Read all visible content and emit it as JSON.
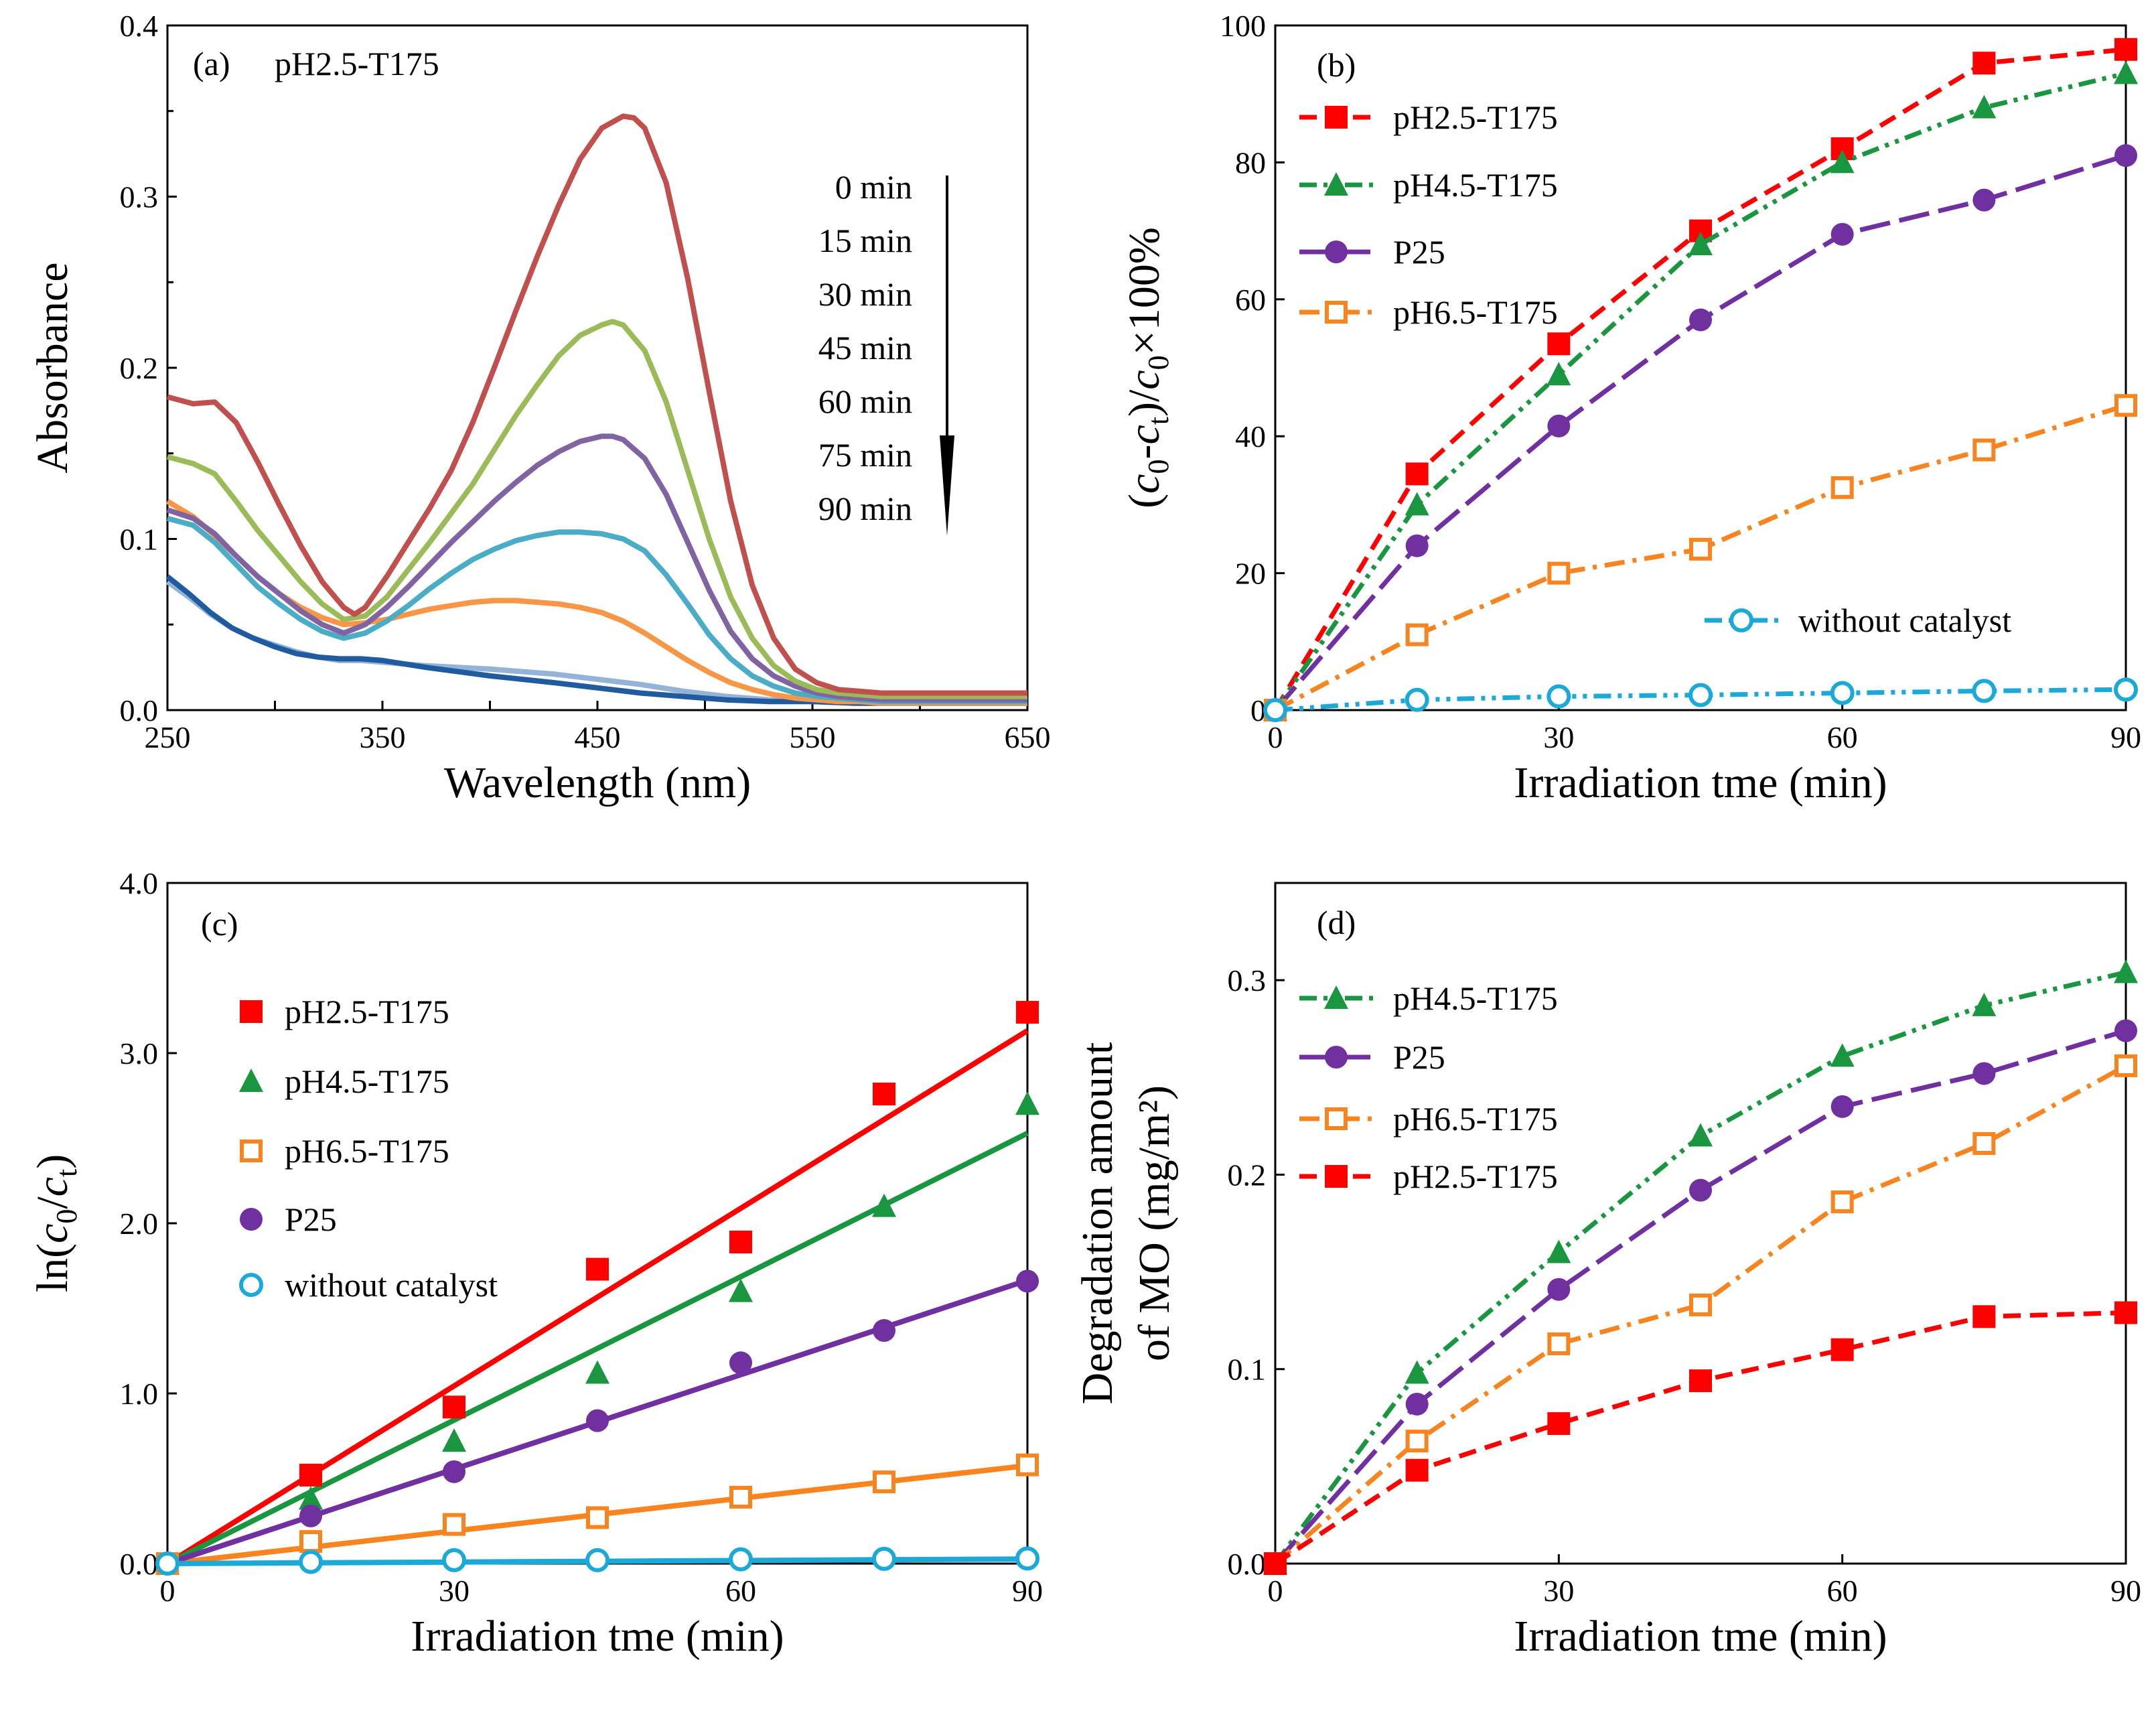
{
  "chart_data": [
    {
      "id": "a",
      "type": "line",
      "panel_label": "(a)",
      "title": "pH2.5-T175",
      "xlabel": "Wavelength (nm)",
      "ylabel": "Absorbance",
      "xlim": [
        250,
        650
      ],
      "ylim": [
        0,
        0.4
      ],
      "xticks": [
        250,
        350,
        450,
        550,
        650
      ],
      "xtick_labels": [
        "250",
        "350",
        "450",
        "550",
        "650"
      ],
      "yticks": [
        0,
        0.1,
        0.2,
        0.3,
        0.4
      ],
      "ytick_labels": [
        "0.0",
        "0.1",
        "0.2",
        "0.3",
        "0.4"
      ],
      "time_labels": [
        "0 min",
        "15 min",
        "30 min",
        "45 min",
        "60 min",
        "75 min",
        "90 min"
      ],
      "annotation": "arrow pointing down (decreasing absorbance with time)",
      "series": [
        {
          "name": "0 min",
          "color": "#C0504D",
          "x": [
            250,
            262,
            272,
            282,
            292,
            302,
            312,
            322,
            332,
            337,
            342,
            352,
            362,
            372,
            382,
            392,
            402,
            412,
            422,
            432,
            442,
            452,
            462,
            467,
            472,
            482,
            492,
            502,
            512,
            522,
            532,
            542,
            552,
            562,
            572,
            582,
            600,
            625,
            650
          ],
          "y": [
            0.183,
            0.179,
            0.18,
            0.168,
            0.145,
            0.12,
            0.096,
            0.075,
            0.06,
            0.056,
            0.06,
            0.078,
            0.098,
            0.118,
            0.14,
            0.168,
            0.2,
            0.233,
            0.265,
            0.295,
            0.322,
            0.34,
            0.347,
            0.346,
            0.34,
            0.308,
            0.252,
            0.186,
            0.122,
            0.073,
            0.042,
            0.024,
            0.016,
            0.012,
            0.011,
            0.01,
            0.01,
            0.01,
            0.01
          ]
        },
        {
          "name": "15 min",
          "color": "#9BBB59",
          "x": [
            250,
            262,
            272,
            282,
            292,
            302,
            312,
            322,
            332,
            342,
            352,
            362,
            372,
            382,
            392,
            402,
            412,
            422,
            432,
            442,
            452,
            457,
            462,
            472,
            482,
            492,
            502,
            512,
            522,
            532,
            542,
            552,
            562,
            572,
            582,
            600,
            625,
            650
          ],
          "y": [
            0.148,
            0.144,
            0.138,
            0.122,
            0.105,
            0.09,
            0.075,
            0.062,
            0.053,
            0.055,
            0.066,
            0.082,
            0.098,
            0.115,
            0.132,
            0.152,
            0.172,
            0.19,
            0.207,
            0.219,
            0.225,
            0.227,
            0.225,
            0.21,
            0.18,
            0.14,
            0.1,
            0.066,
            0.042,
            0.026,
            0.017,
            0.012,
            0.01,
            0.009,
            0.008,
            0.008,
            0.008,
            0.008
          ]
        },
        {
          "name": "30 min",
          "color": "#8064A2",
          "x": [
            250,
            262,
            272,
            282,
            292,
            302,
            312,
            322,
            332,
            342,
            352,
            362,
            372,
            382,
            392,
            402,
            412,
            422,
            432,
            442,
            452,
            457,
            462,
            472,
            482,
            492,
            502,
            512,
            522,
            532,
            542,
            552,
            562,
            572,
            582,
            600,
            625,
            650
          ],
          "y": [
            0.117,
            0.112,
            0.103,
            0.09,
            0.078,
            0.068,
            0.058,
            0.05,
            0.045,
            0.05,
            0.06,
            0.072,
            0.085,
            0.098,
            0.11,
            0.122,
            0.133,
            0.143,
            0.151,
            0.157,
            0.16,
            0.16,
            0.158,
            0.147,
            0.126,
            0.098,
            0.07,
            0.046,
            0.03,
            0.02,
            0.014,
            0.01,
            0.008,
            0.007,
            0.006,
            0.006,
            0.006,
            0.006
          ]
        },
        {
          "name": "45 min",
          "color": "#4BACC6",
          "x": [
            250,
            262,
            272,
            282,
            292,
            302,
            312,
            322,
            332,
            342,
            352,
            362,
            372,
            382,
            392,
            402,
            412,
            422,
            432,
            442,
            452,
            462,
            472,
            482,
            492,
            502,
            512,
            522,
            532,
            542,
            552,
            562,
            572,
            582,
            600,
            625,
            650
          ],
          "y": [
            0.112,
            0.108,
            0.098,
            0.085,
            0.072,
            0.062,
            0.053,
            0.046,
            0.042,
            0.045,
            0.052,
            0.061,
            0.071,
            0.08,
            0.088,
            0.094,
            0.099,
            0.102,
            0.104,
            0.104,
            0.103,
            0.1,
            0.093,
            0.079,
            0.062,
            0.044,
            0.03,
            0.02,
            0.014,
            0.01,
            0.008,
            0.007,
            0.006,
            0.005,
            0.005,
            0.005,
            0.005
          ]
        },
        {
          "name": "60 min",
          "color": "#F79646",
          "x": [
            250,
            262,
            272,
            282,
            292,
            302,
            312,
            322,
            332,
            342,
            352,
            362,
            372,
            382,
            392,
            402,
            412,
            422,
            432,
            442,
            452,
            462,
            472,
            482,
            492,
            502,
            512,
            522,
            532,
            542,
            552,
            562,
            572,
            582,
            600,
            625,
            650
          ],
          "y": [
            0.122,
            0.113,
            0.102,
            0.09,
            0.078,
            0.068,
            0.06,
            0.054,
            0.05,
            0.051,
            0.053,
            0.056,
            0.059,
            0.061,
            0.063,
            0.064,
            0.064,
            0.063,
            0.062,
            0.06,
            0.057,
            0.052,
            0.045,
            0.037,
            0.029,
            0.022,
            0.016,
            0.012,
            0.009,
            0.007,
            0.006,
            0.005,
            0.005,
            0.004,
            0.004,
            0.004,
            0.004
          ]
        },
        {
          "name": "75 min",
          "color": "#95B3D7",
          "x": [
            250,
            260,
            270,
            280,
            290,
            300,
            310,
            320,
            330,
            340,
            350,
            370,
            400,
            430,
            450,
            470,
            490,
            510,
            530,
            550,
            570,
            600,
            625,
            650
          ],
          "y": [
            0.075,
            0.066,
            0.056,
            0.048,
            0.042,
            0.038,
            0.034,
            0.031,
            0.029,
            0.029,
            0.028,
            0.026,
            0.024,
            0.021,
            0.018,
            0.015,
            0.011,
            0.008,
            0.006,
            0.005,
            0.005,
            0.004,
            0.004,
            0.004
          ]
        },
        {
          "name": "90 min",
          "color": "#1F5B9E",
          "x": [
            250,
            260,
            270,
            280,
            290,
            300,
            310,
            320,
            330,
            340,
            350,
            370,
            400,
            430,
            450,
            470,
            490,
            510,
            530,
            550,
            570,
            600,
            625,
            650
          ],
          "y": [
            0.078,
            0.068,
            0.057,
            0.048,
            0.042,
            0.037,
            0.033,
            0.031,
            0.03,
            0.03,
            0.029,
            0.025,
            0.02,
            0.016,
            0.013,
            0.01,
            0.008,
            0.006,
            0.005,
            0.005,
            0.004,
            0.004,
            0.004,
            0.004
          ]
        }
      ]
    },
    {
      "id": "b",
      "type": "line",
      "panel_label": "(b)",
      "xlabel": "Irradiation tme (min)",
      "ylabel": "(c0-ct)/c0×100%",
      "ylabel_parts": {
        "open": "(",
        "c": "c",
        "sub0": "0",
        "minus": "-",
        "subt": "t",
        "close": ")/",
        "tail": "×100%"
      },
      "xlim": [
        0,
        90
      ],
      "ylim": [
        0,
        100
      ],
      "xticks": [
        0,
        30,
        60,
        90
      ],
      "xtick_labels": [
        "0",
        "30",
        "60",
        "90"
      ],
      "yticks": [
        0,
        20,
        40,
        60,
        80,
        100
      ],
      "ytick_labels": [
        "0",
        "20",
        "40",
        "60",
        "80",
        "100"
      ],
      "x": [
        0,
        15,
        30,
        45,
        60,
        75,
        90
      ],
      "series": [
        {
          "name": "pH2.5-T175",
          "color": "#FF0000",
          "marker": "square",
          "dash": "dash",
          "values": [
            0,
            34.5,
            53.5,
            70,
            82,
            94.5,
            96.5
          ]
        },
        {
          "name": "pH4.5-T175",
          "color": "#1A9641",
          "marker": "triangle",
          "dash": "dashdotdot",
          "values": [
            0,
            30,
            49,
            68,
            80,
            88,
            93
          ]
        },
        {
          "name": "P25",
          "color": "#7030A0",
          "marker": "circle",
          "dash": "longdash",
          "values": [
            0,
            24,
            41.5,
            57,
            69.5,
            74.5,
            81
          ]
        },
        {
          "name": "pH6.5-T175",
          "color": "#F7841E",
          "marker": "square-open",
          "dash": "dashdot",
          "values": [
            0,
            11,
            20,
            23.5,
            32.5,
            38,
            44.5
          ]
        },
        {
          "name": "without catalyst",
          "color": "#1BA9D8",
          "marker": "circle-open",
          "dash": "dashdotdot",
          "values": [
            0,
            1.5,
            2,
            2.2,
            2.5,
            2.8,
            3
          ]
        }
      ]
    },
    {
      "id": "c",
      "type": "scatter",
      "panel_label": "(c)",
      "xlabel": "Irradiation tme (min)",
      "ylabel": "ln(c0/ct)",
      "ylabel_parts": {
        "open": "ln(",
        "c": "c",
        "sub0": "0",
        "slash": "/",
        "subt": "t",
        "close": ")"
      },
      "xlim": [
        0,
        90
      ],
      "ylim": [
        0,
        4
      ],
      "xticks": [
        0,
        30,
        60,
        90
      ],
      "xtick_labels": [
        "0",
        "30",
        "60",
        "90"
      ],
      "yticks": [
        0,
        1,
        2,
        3,
        4
      ],
      "ytick_labels": [
        "0.0",
        "1.0",
        "2.0",
        "3.0",
        "4.0"
      ],
      "x": [
        0,
        15,
        30,
        45,
        60,
        75,
        90
      ],
      "series": [
        {
          "name": "pH2.5-T175",
          "color": "#FF0000",
          "marker": "square",
          "values": [
            0,
            0.52,
            0.92,
            1.73,
            1.89,
            2.76,
            3.24
          ],
          "fit_slope": 0.0348
        },
        {
          "name": "pH4.5-T175",
          "color": "#1A9641",
          "marker": "triangle",
          "values": [
            0,
            0.38,
            0.72,
            1.12,
            1.6,
            2.1,
            2.7
          ],
          "fit_slope": 0.0281
        },
        {
          "name": "pH6.5-T175",
          "color": "#F7841E",
          "marker": "square-open",
          "values": [
            0,
            0.13,
            0.23,
            0.27,
            0.39,
            0.48,
            0.58
          ],
          "fit_slope": 0.0064
        },
        {
          "name": "P25",
          "color": "#7030A0",
          "marker": "circle",
          "values": [
            0,
            0.28,
            0.54,
            0.84,
            1.18,
            1.37,
            1.66
          ],
          "fit_slope": 0.0185
        },
        {
          "name": "without catalyst",
          "color": "#1BA9D8",
          "marker": "circle-open",
          "values": [
            0,
            0.01,
            0.02,
            0.02,
            0.025,
            0.028,
            0.03
          ],
          "fit_slope": 0.0003
        }
      ]
    },
    {
      "id": "d",
      "type": "line",
      "panel_label": "(d)",
      "xlabel": "Irradiation tme (min)",
      "ylabel_line1": "Degradation amount",
      "ylabel_line2": "of MO (mg/m²)",
      "xlim": [
        0,
        90
      ],
      "ylim": [
        0,
        0.35
      ],
      "xticks": [
        0,
        30,
        60,
        90
      ],
      "xtick_labels": [
        "0",
        "30",
        "60",
        "90"
      ],
      "yticks": [
        0,
        0.1,
        0.2,
        0.3
      ],
      "ytick_labels": [
        "0.0",
        "0.1",
        "0.2",
        "0.3"
      ],
      "x": [
        0,
        15,
        30,
        45,
        60,
        75,
        90
      ],
      "series": [
        {
          "name": "pH4.5-T175",
          "color": "#1A9641",
          "marker": "triangle",
          "dash": "dashdotdot",
          "values": [
            0,
            0.098,
            0.16,
            0.22,
            0.261,
            0.287,
            0.304
          ]
        },
        {
          "name": "P25",
          "color": "#7030A0",
          "marker": "circle",
          "dash": "longdash",
          "values": [
            0,
            0.082,
            0.141,
            0.192,
            0.235,
            0.252,
            0.274
          ]
        },
        {
          "name": "pH6.5-T175",
          "color": "#F7841E",
          "marker": "square-open",
          "dash": "dashdot",
          "values": [
            0,
            0.063,
            0.113,
            0.133,
            0.186,
            0.216,
            0.256
          ]
        },
        {
          "name": "pH2.5-T175",
          "color": "#FF0000",
          "marker": "square",
          "dash": "dash",
          "values": [
            0,
            0.048,
            0.072,
            0.094,
            0.11,
            0.127,
            0.129
          ]
        }
      ]
    }
  ]
}
